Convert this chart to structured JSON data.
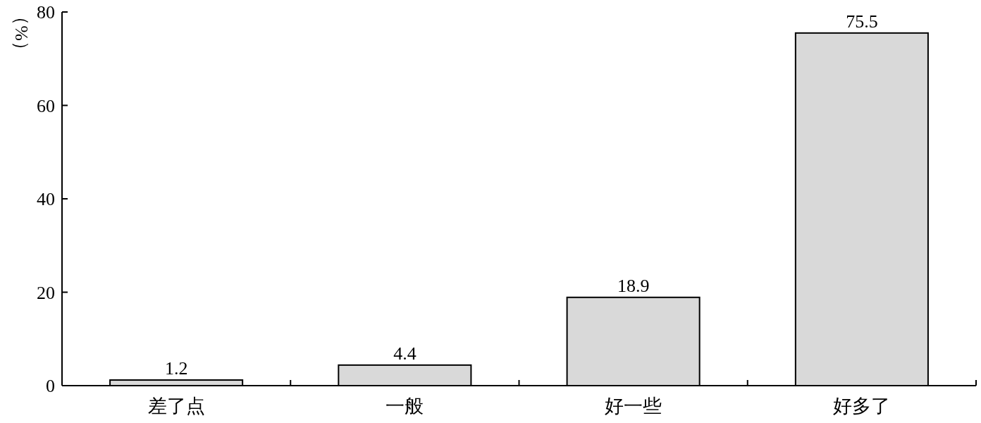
{
  "chart_data": {
    "type": "bar",
    "ylabel": "（%）",
    "categories": [
      "差了点",
      "一般",
      "好一些",
      "好多了"
    ],
    "values": [
      1.2,
      4.4,
      18.9,
      75.5
    ],
    "color": "#d9d9d9",
    "ylim": [
      0,
      80
    ],
    "yticks": [
      0,
      20,
      40,
      60,
      80
    ],
    "data_labels": true
  }
}
